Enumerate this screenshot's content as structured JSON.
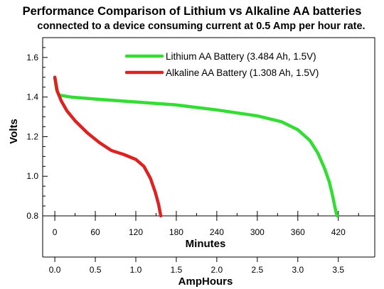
{
  "chart_data": {
    "type": "line",
    "title": "Performance Comparison of Lithium vs Alkaline AA batteries",
    "subtitle": "connected to a device consuming current at 0.5 Amp per hour rate.",
    "ylabel": "Volts",
    "xlabel_minutes": "Minutes",
    "xlabel_amphours": "AmpHours",
    "ylim": [
      0.8,
      1.7
    ],
    "y_ticks": [
      {
        "value": 0.8,
        "label": "0.8"
      },
      {
        "value": 1.0,
        "label": "1.0"
      },
      {
        "value": 1.2,
        "label": "1.2"
      },
      {
        "value": 1.4,
        "label": "1.4"
      },
      {
        "value": 1.6,
        "label": "1.6"
      }
    ],
    "xlim_amphours": [
      -0.15,
      3.95
    ],
    "minute_ticks": [
      {
        "value": 0,
        "label": "0"
      },
      {
        "value": 60,
        "label": "60"
      },
      {
        "value": 120,
        "label": "120"
      },
      {
        "value": 180,
        "label": "180"
      },
      {
        "value": 240,
        "label": "240"
      },
      {
        "value": 300,
        "label": "300"
      },
      {
        "value": 360,
        "label": "360"
      },
      {
        "value": 420,
        "label": "420"
      }
    ],
    "amphour_ticks": [
      {
        "value": 0.0,
        "label": "0.0"
      },
      {
        "value": 0.5,
        "label": "0.5"
      },
      {
        "value": 1.0,
        "label": "1.0"
      },
      {
        "value": 1.5,
        "label": "1.5"
      },
      {
        "value": 2.0,
        "label": "2.0"
      },
      {
        "value": 2.5,
        "label": "2.5"
      },
      {
        "value": 3.0,
        "label": "3.0"
      },
      {
        "value": 3.5,
        "label": "3.5"
      }
    ],
    "legend_position": "top-right",
    "grid": false,
    "series": [
      {
        "name": "Lithium AA Battery (3.484 Ah, 1.5V)",
        "color": "#33dd33",
        "x": [
          0.0,
          0.02,
          0.05,
          0.2,
          0.5,
          1.0,
          1.5,
          2.0,
          2.5,
          2.8,
          3.0,
          3.15,
          3.25,
          3.33,
          3.39,
          3.43,
          3.46,
          3.484
        ],
        "y": [
          1.5,
          1.44,
          1.41,
          1.4,
          1.39,
          1.375,
          1.36,
          1.335,
          1.305,
          1.275,
          1.235,
          1.18,
          1.115,
          1.04,
          0.97,
          0.9,
          0.84,
          0.8
        ]
      },
      {
        "name": "Alkaline AA Battery (1.308 Ah, 1.5V)",
        "color": "#dd2222",
        "x": [
          0.0,
          0.03,
          0.08,
          0.15,
          0.25,
          0.4,
          0.55,
          0.7,
          0.85,
          1.0,
          1.1,
          1.18,
          1.24,
          1.28,
          1.308
        ],
        "y": [
          1.5,
          1.43,
          1.38,
          1.33,
          1.28,
          1.22,
          1.17,
          1.13,
          1.11,
          1.085,
          1.05,
          0.99,
          0.92,
          0.86,
          0.8
        ]
      }
    ]
  }
}
